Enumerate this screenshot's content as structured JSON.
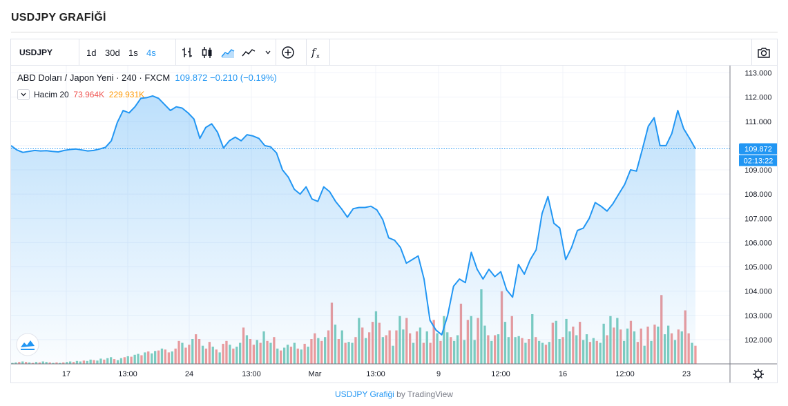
{
  "page": {
    "title": "USDJPY GRAFİĞİ"
  },
  "toolbar": {
    "symbol": "USDJPY",
    "intervals": [
      "1d",
      "30d",
      "1s",
      "4s"
    ],
    "active_interval": "4s",
    "icons": [
      "bar-chart-icon",
      "candlestick-icon",
      "area-chart-icon",
      "line-chart-icon",
      "compare-add-icon",
      "indicators-icon",
      "camera-icon"
    ]
  },
  "legend": {
    "description": "ABD Doları / Japon Yeni",
    "interval": "240",
    "source": "FXCM",
    "last": "109.872",
    "change": "−0.210",
    "change_pct": "(−0.19%)",
    "volume_label": "Hacim",
    "volume_length": "20",
    "volume_value": "73.964K",
    "volume_ma": "229.931K"
  },
  "price_tag": {
    "value": "109.872",
    "countdown": "02:13:22"
  },
  "footer": {
    "link_text": "USDJPY Grafiği",
    "by_text": " by TradingView"
  },
  "colors": {
    "line": "#2196f3",
    "up": "#7ecdbf",
    "down": "#ef9a9a",
    "accent": "#2196f3"
  },
  "chart_data": {
    "type": "area",
    "y_range": [
      101.0,
      113.3
    ],
    "y_ticks": [
      "113.000",
      "112.000",
      "111.000",
      "110.000",
      "109.000",
      "108.000",
      "107.000",
      "106.000",
      "105.000",
      "104.000",
      "103.000",
      "102.000"
    ],
    "x_ticks": [
      "17",
      "13:00",
      "24",
      "13:00",
      "Mar",
      "13:00",
      "9",
      "12:00",
      "16",
      "12:00",
      "23"
    ],
    "series": [
      {
        "values": [
          110.0,
          109.82,
          109.72,
          109.76,
          109.8,
          109.78,
          109.79,
          109.76,
          109.74,
          109.8,
          109.84,
          109.86,
          109.82,
          109.78,
          109.8,
          109.86,
          109.93,
          110.2,
          110.95,
          111.45,
          111.35,
          111.6,
          111.95,
          111.98,
          112.05,
          111.95,
          111.7,
          111.45,
          111.6,
          111.55,
          111.35,
          111.1,
          110.3,
          110.75,
          110.9,
          110.55,
          109.9,
          110.2,
          110.35,
          110.2,
          110.45,
          110.4,
          110.3,
          110.0,
          109.95,
          109.7,
          109.0,
          108.7,
          108.2,
          108.0,
          108.3,
          107.8,
          107.7,
          108.3,
          108.1,
          107.7,
          107.4,
          107.05,
          107.4,
          107.45,
          107.45,
          107.5,
          107.35,
          106.95,
          106.2,
          106.1,
          105.8,
          105.15,
          105.3,
          105.45,
          104.5,
          102.8,
          102.4,
          102.2,
          103.0,
          104.2,
          104.5,
          104.35,
          105.6,
          104.9,
          104.5,
          104.9,
          104.6,
          104.8,
          104.05,
          103.75,
          105.1,
          104.7,
          105.3,
          105.7,
          107.2,
          107.9,
          106.8,
          106.6,
          105.3,
          105.8,
          106.5,
          106.6,
          107.0,
          107.65,
          107.5,
          107.3,
          107.6,
          108.0,
          108.4,
          109.0,
          108.95,
          109.85,
          110.8,
          111.15,
          110.0,
          110.0,
          110.5,
          111.45,
          110.7,
          110.3,
          109.87
        ]
      }
    ],
    "volume": {
      "values": [
        0.1,
        0.15,
        0.2,
        0.25,
        0.2,
        0.15,
        0.1,
        0.2,
        0.15,
        0.25,
        0.2,
        0.15,
        0.1,
        0.15,
        0.1,
        0.15,
        0.2,
        0.25,
        0.2,
        0.3,
        0.25,
        0.35,
        0.3,
        0.45,
        0.4,
        0.35,
        0.55,
        0.45,
        0.6,
        0.7,
        0.5,
        0.4,
        0.6,
        0.7,
        0.8,
        0.75,
        0.95,
        1.05,
        0.9,
        1.2,
        1.3,
        1.1,
        1.35,
        1.4,
        1.6,
        1.5,
        1.2,
        1.3,
        1.6,
        2.4,
        2.2,
        1.7,
        2.0,
        2.6,
        3.1,
        2.6,
        1.9,
        1.6,
        2.3,
        1.8,
        1.5,
        1.2,
        2.1,
        2.4,
        2.0,
        1.6,
        1.8,
        2.2,
        3.8,
        3.0,
        2.6,
        2.0,
        2.5,
        2.2,
        3.4,
        2.4,
        2.2,
        2.8,
        1.6,
        1.4,
        1.7,
        2.0,
        1.8,
        2.2,
        1.6,
        1.5,
        2.1,
        1.8,
        2.6,
        3.2,
        2.7,
        2.4,
        2.8,
        3.5,
        6.4,
        4.1,
        2.6,
        3.5,
        2.2,
        2.3,
        2.2,
        2.8,
        4.8,
        3.8,
        2.7,
        3.3,
        4.4,
        5.5,
        4.3,
        2.8,
        3.0,
        3.5,
        1.9,
        3.5,
        5.0,
        3.6,
        4.8,
        3.2,
        2.2,
        3.4,
        3.8,
        2.2,
        3.4,
        2.2,
        4.6,
        3.2,
        2.4,
        5.0,
        3.3,
        2.8,
        2.4,
        3.0,
        6.3,
        2.5,
        4.6,
        5.0,
        2.5,
        4.8,
        7.8,
        4.0,
        3.0,
        2.4,
        3.0,
        3.1,
        7.6,
        4.4,
        2.8,
        5.0,
        2.8,
        2.9,
        2.7,
        2.2,
        2.6,
        5.2,
        2.8,
        2.4,
        2.2,
        2.0,
        2.3,
        4.3,
        4.5,
        2.6,
        2.8,
        4.7,
        3.4,
        3.9,
        3.0,
        4.4,
        2.5,
        3.1,
        2.3,
        2.7,
        2.4,
        2.2,
        4.2,
        3.0,
        5.0,
        3.8,
        4.8,
        3.6,
        2.4,
        3.7,
        4.5,
        3.4,
        2.3,
        3.7,
        1.9,
        3.9,
        2.4,
        4.1,
        3.9,
        7.2,
        3.1,
        4.0,
        3.2,
        2.5,
        3.6,
        3.4,
        5.6,
        3.2,
        2.2,
        1.9
      ],
      "up": [
        1,
        1,
        0,
        1,
        0,
        1,
        0,
        1,
        0,
        1,
        1,
        0,
        1,
        0,
        1,
        0,
        1,
        1,
        0,
        1,
        1,
        0,
        1,
        1,
        0,
        1,
        1,
        0,
        1,
        1,
        0,
        1,
        1,
        0,
        1,
        0,
        1,
        1,
        0,
        1,
        0,
        1,
        1,
        0,
        1,
        0,
        0,
        1,
        0,
        0,
        1,
        0,
        0,
        1,
        0,
        0,
        1,
        0,
        0,
        1,
        0,
        1,
        0,
        0,
        1,
        0,
        1,
        1,
        0,
        1,
        0,
        0,
        1,
        0,
        1,
        0,
        1,
        0,
        1,
        0,
        1,
        1,
        0,
        1,
        0,
        1,
        0,
        1,
        0,
        0,
        1,
        0,
        1,
        0,
        0,
        1,
        0,
        1,
        0,
        1,
        1,
        0,
        1,
        0,
        1,
        0,
        0,
        1,
        0,
        1,
        0,
        0,
        1,
        0,
        1,
        1,
        0,
        0,
        1,
        0,
        1,
        0,
        1,
        0,
        0,
        1,
        0,
        1,
        1,
        0,
        1,
        1,
        0,
        1,
        0,
        1,
        1,
        0,
        1,
        1,
        0,
        1,
        0,
        1,
        0,
        1,
        1,
        0,
        1,
        1,
        0,
        1,
        0,
        1,
        0,
        1,
        1,
        0,
        1,
        0,
        1,
        1,
        0,
        1,
        1,
        0,
        1,
        0,
        1,
        1,
        0,
        1,
        0,
        1,
        1,
        0,
        1,
        0,
        1,
        0,
        1,
        1,
        0,
        1,
        0,
        0,
        1,
        0,
        1,
        0,
        1,
        0,
        1,
        1,
        0,
        1,
        0,
        1,
        0,
        0,
        1,
        0,
        1,
        0,
        0,
        1,
        0,
        0
      ]
    }
  }
}
